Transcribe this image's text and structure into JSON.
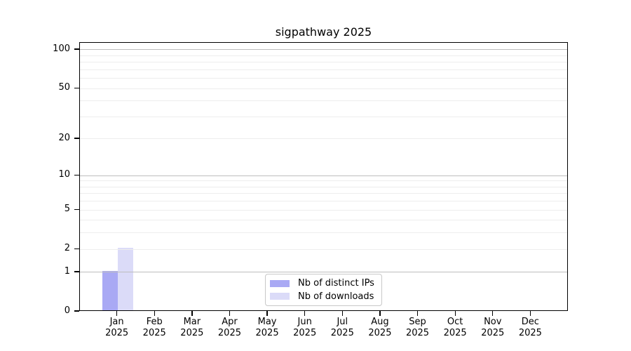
{
  "title": "sigpathway 2025",
  "chart_data": {
    "type": "bar",
    "title": "sigpathway 2025",
    "categories": [
      "Jan",
      "Feb",
      "Mar",
      "Apr",
      "May",
      "Jun",
      "Jul",
      "Aug",
      "Sep",
      "Oct",
      "Nov",
      "Dec"
    ],
    "category_year": "2025",
    "series": [
      {
        "name": "Nb of distinct IPs",
        "color": "#a9a9f4",
        "values": [
          1,
          0,
          0,
          0,
          0,
          0,
          0,
          0,
          0,
          0,
          0,
          0
        ]
      },
      {
        "name": "Nb of downloads",
        "color": "#dbdbf8",
        "values": [
          2,
          0,
          0,
          0,
          0,
          0,
          0,
          0,
          0,
          0,
          0,
          0
        ]
      }
    ],
    "xlabel": "",
    "ylabel": "",
    "y_scale": "log10(1+x)",
    "y_axis": {
      "tick_values": [
        0,
        1,
        2,
        5,
        10,
        20,
        50,
        100
      ],
      "major_grid_values": [
        1,
        10,
        100
      ],
      "minor_grid_values": [
        2,
        3,
        4,
        5,
        6,
        7,
        8,
        9,
        20,
        30,
        40,
        50,
        60,
        70,
        80,
        90
      ],
      "top_value": 113
    },
    "grid": true,
    "legend_position": "bottom-center",
    "colors": {
      "major_grid": "#bdbdbd",
      "minor_grid": "#ededed",
      "axis": "#000000"
    }
  }
}
